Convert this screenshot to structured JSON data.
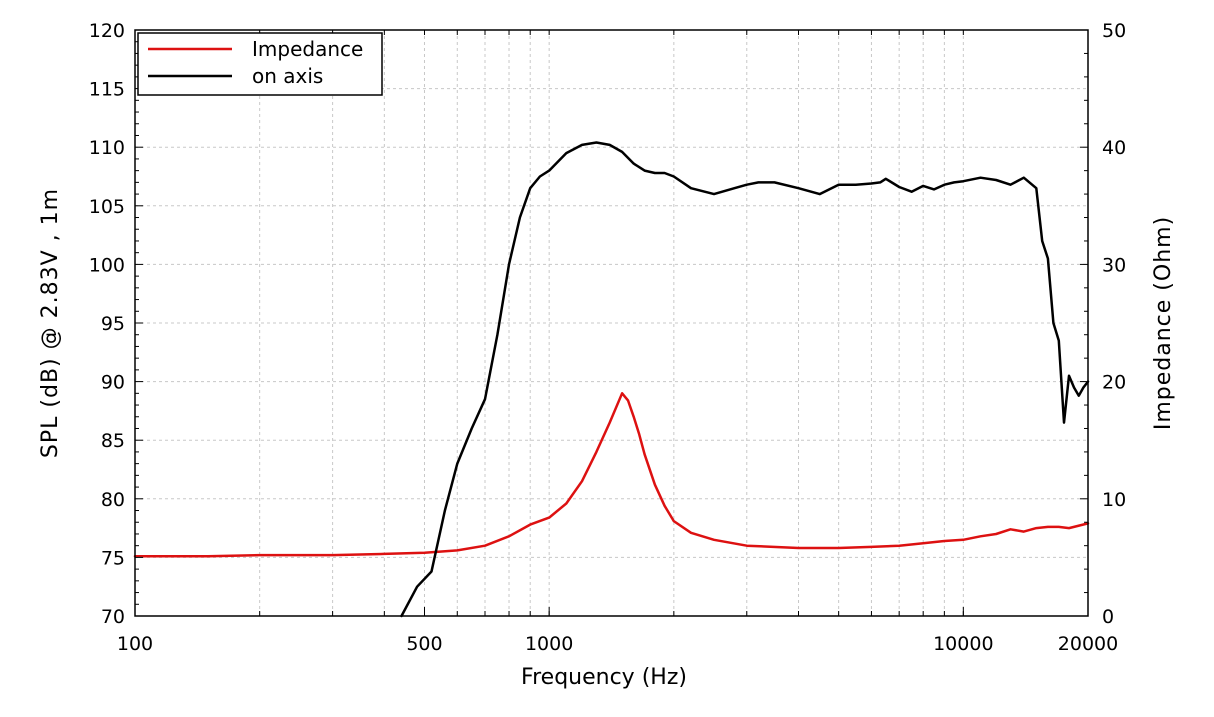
{
  "chart_data": {
    "type": "line",
    "title": "",
    "xlabel": "Frequency (Hz)",
    "ylabel": "SPL (dB) @ 2.83V , 1m",
    "y2label": "Impedance (Ohm)",
    "xscale": "log",
    "xlim": [
      100,
      20000
    ],
    "ylim": [
      70,
      120
    ],
    "y2lim": [
      0,
      50
    ],
    "x_ticks": [
      100,
      500,
      1000,
      10000,
      20000
    ],
    "x_tick_labels": [
      "100",
      "500",
      "1000",
      "10000",
      "20000"
    ],
    "y_ticks": [
      70,
      75,
      80,
      85,
      90,
      95,
      100,
      105,
      110,
      115,
      120
    ],
    "y_tick_labels": [
      "70",
      "75",
      "80",
      "85",
      "90",
      "95",
      "100",
      "105",
      "110",
      "115",
      "120"
    ],
    "y2_ticks": [
      0,
      10,
      20,
      30,
      40,
      50
    ],
    "y2_tick_labels": [
      "0",
      "10",
      "20",
      "30",
      "40",
      "50"
    ],
    "grid": true,
    "legend_position": "top-left",
    "colors": {
      "impedance": "#dd1111",
      "on_axis": "#000000"
    },
    "series": [
      {
        "name": "Impedance",
        "axis": "right",
        "x": [
          100,
          150,
          200,
          300,
          400,
          500,
          600,
          700,
          800,
          900,
          1000,
          1100,
          1200,
          1300,
          1400,
          1500,
          1550,
          1600,
          1650,
          1700,
          1800,
          1900,
          2000,
          2200,
          2500,
          3000,
          4000,
          5000,
          6000,
          7000,
          8000,
          9000,
          10000,
          11000,
          12000,
          13000,
          14000,
          15000,
          16000,
          17000,
          18000,
          20000
        ],
        "values": [
          5.1,
          5.1,
          5.2,
          5.2,
          5.3,
          5.4,
          5.6,
          6.0,
          6.8,
          7.8,
          8.4,
          9.6,
          11.5,
          14.0,
          16.5,
          19.0,
          18.4,
          17.0,
          15.5,
          13.8,
          11.2,
          9.4,
          8.1,
          7.1,
          6.5,
          6.0,
          5.8,
          5.8,
          5.9,
          6.0,
          6.2,
          6.4,
          6.5,
          6.8,
          7.0,
          7.4,
          7.2,
          7.5,
          7.6,
          7.6,
          7.5,
          7.9
        ]
      },
      {
        "name": "on axis",
        "axis": "left",
        "x": [
          440,
          480,
          520,
          560,
          600,
          650,
          700,
          750,
          800,
          850,
          900,
          950,
          1000,
          1100,
          1200,
          1300,
          1400,
          1500,
          1600,
          1700,
          1800,
          1900,
          2000,
          2200,
          2500,
          2800,
          3000,
          3200,
          3500,
          4000,
          4500,
          5000,
          5500,
          6000,
          6300,
          6500,
          7000,
          7500,
          8000,
          8500,
          9000,
          9500,
          10000,
          11000,
          12000,
          13000,
          14000,
          15000,
          15500,
          16000,
          16500,
          17000,
          17500,
          18000,
          18500,
          19000,
          19500,
          20000
        ],
        "values": [
          70.0,
          72.5,
          73.8,
          79.0,
          83.0,
          86.0,
          88.5,
          94.0,
          100.0,
          104.0,
          106.5,
          107.5,
          108.0,
          109.5,
          110.2,
          110.4,
          110.2,
          109.6,
          108.6,
          108.0,
          107.8,
          107.8,
          107.5,
          106.5,
          106.0,
          106.5,
          106.8,
          107.0,
          107.0,
          106.5,
          106.0,
          106.8,
          106.8,
          106.9,
          107.0,
          107.3,
          106.6,
          106.2,
          106.7,
          106.4,
          106.8,
          107.0,
          107.1,
          107.4,
          107.2,
          106.8,
          107.4,
          106.5,
          102.0,
          100.5,
          95.0,
          93.5,
          86.5,
          90.5,
          89.5,
          88.8,
          89.5,
          90.0
        ]
      }
    ]
  }
}
